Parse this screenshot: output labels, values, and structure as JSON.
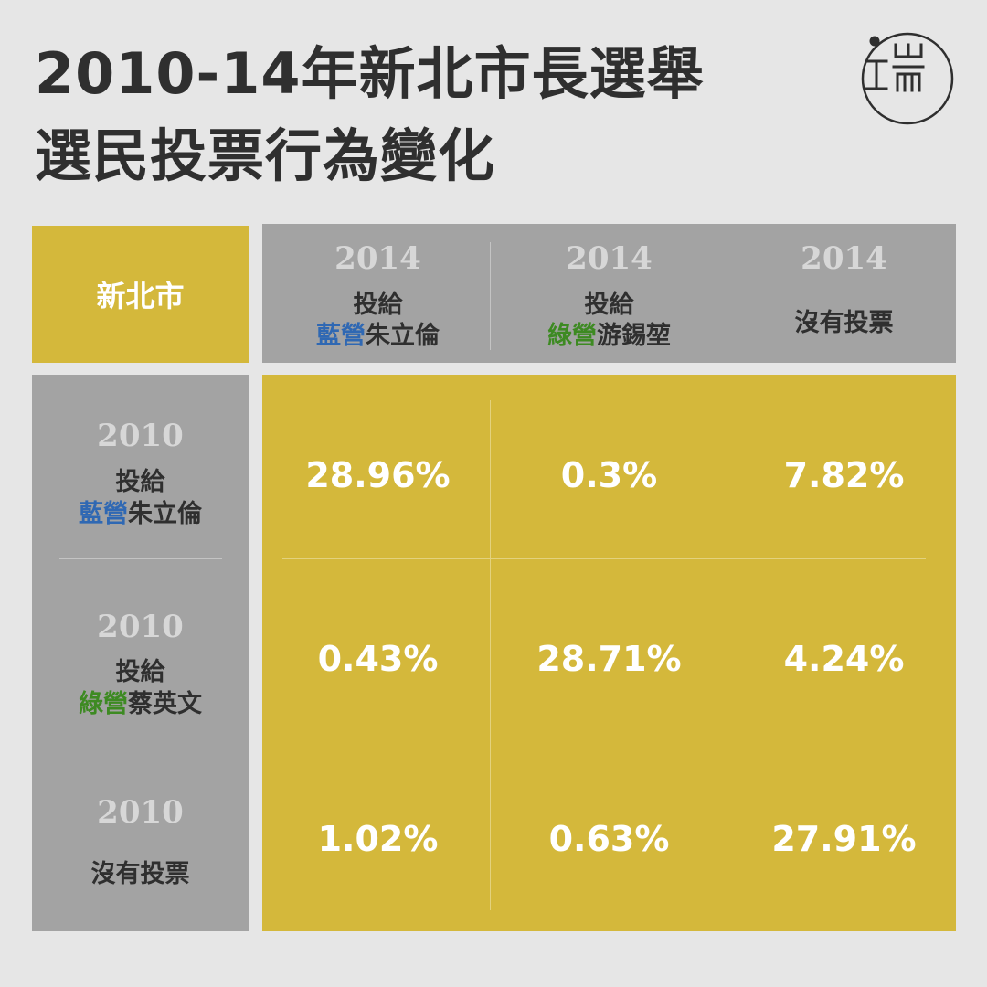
{
  "title": {
    "line1": "2010-14年新北市長選舉",
    "line2": "選民投票行為變化"
  },
  "logo": {
    "text": "端"
  },
  "colors": {
    "background": "#e6e6e6",
    "accent_yellow": "#d4b83b",
    "header_gray": "#a3a3a3",
    "blue_camp": "#2f68b3",
    "green_camp": "#3d8a22"
  },
  "chart_data": {
    "type": "table",
    "corner_label": "新北市",
    "columns": [
      {
        "year": "2014",
        "line1": "投給",
        "camp": "藍營",
        "camp_color": "blue",
        "candidate": "朱立倫"
      },
      {
        "year": "2014",
        "line1": "投給",
        "camp": "綠營",
        "camp_color": "green",
        "candidate": "游錫堃"
      },
      {
        "year": "2014",
        "line1": "",
        "camp": "",
        "camp_color": "",
        "candidate": "沒有投票"
      }
    ],
    "rows": [
      {
        "year": "2010",
        "line1": "投給",
        "camp": "藍營",
        "camp_color": "blue",
        "candidate": "朱立倫"
      },
      {
        "year": "2010",
        "line1": "投給",
        "camp": "綠營",
        "camp_color": "green",
        "candidate": "蔡英文"
      },
      {
        "year": "2010",
        "line1": "",
        "camp": "",
        "camp_color": "",
        "candidate": "沒有投票"
      }
    ],
    "values": [
      [
        "28.96%",
        "0.3%",
        "7.82%"
      ],
      [
        "0.43%",
        "28.71%",
        "4.24%"
      ],
      [
        "1.02%",
        "0.63%",
        "27.91%"
      ]
    ]
  }
}
